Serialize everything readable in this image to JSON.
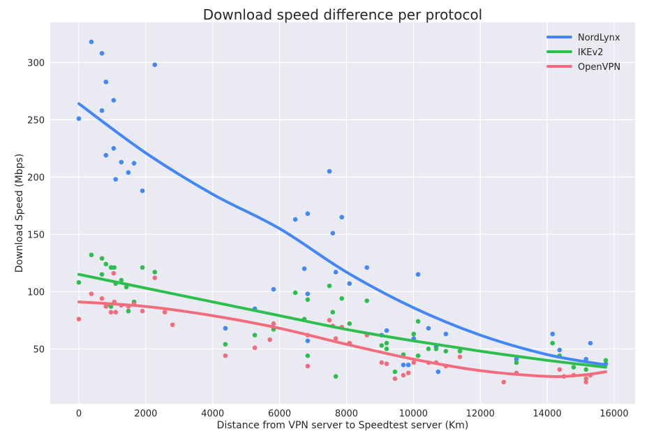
{
  "chart_data": {
    "type": "scatter",
    "title": "Download speed difference per protocol",
    "xlabel": "Distance from VPN server to Speedtest server (Km)",
    "ylabel": "Download Speed (Mbps)",
    "xlim": [
      -855,
      16625
    ],
    "ylim": [
      2,
      335
    ],
    "xticks": [
      0,
      2000,
      4000,
      6000,
      8000,
      10000,
      12000,
      14000,
      16000
    ],
    "yticks": [
      50,
      100,
      150,
      200,
      250,
      300
    ],
    "grid": true,
    "background": "#eaeaf2",
    "legend_position": "top-right",
    "series": [
      {
        "name": "NordLynx",
        "color": "#4287f5",
        "points": [
          [
            0,
            251
          ],
          [
            375,
            318
          ],
          [
            690,
            308
          ],
          [
            810,
            283
          ],
          [
            690,
            258
          ],
          [
            1040,
            267
          ],
          [
            810,
            219
          ],
          [
            1040,
            225
          ],
          [
            1270,
            213
          ],
          [
            1480,
            204
          ],
          [
            1650,
            212
          ],
          [
            1100,
            198
          ],
          [
            1900,
            188
          ],
          [
            2270,
            298
          ],
          [
            980,
            121
          ],
          [
            4380,
            68
          ],
          [
            5260,
            85
          ],
          [
            5820,
            102
          ],
          [
            6470,
            163
          ],
          [
            6740,
            120
          ],
          [
            6840,
            168
          ],
          [
            6840,
            98
          ],
          [
            6840,
            57
          ],
          [
            7490,
            205
          ],
          [
            7590,
            151
          ],
          [
            7680,
            117
          ],
          [
            7860,
            165
          ],
          [
            8090,
            107
          ],
          [
            8610,
            121
          ],
          [
            9050,
            62
          ],
          [
            9200,
            66
          ],
          [
            9700,
            36
          ],
          [
            9850,
            36
          ],
          [
            10010,
            59
          ],
          [
            10140,
            115
          ],
          [
            10450,
            68
          ],
          [
            10680,
            52
          ],
          [
            10740,
            30
          ],
          [
            10970,
            63
          ],
          [
            13080,
            41
          ],
          [
            14160,
            63
          ],
          [
            14370,
            49
          ],
          [
            15160,
            41
          ],
          [
            15290,
            55
          ],
          [
            15750,
            37
          ]
        ],
        "trend": [
          [
            0,
            264
          ],
          [
            2000,
            221
          ],
          [
            4000,
            185
          ],
          [
            6000,
            155
          ],
          [
            8000,
            117
          ],
          [
            10000,
            86
          ],
          [
            12000,
            62
          ],
          [
            14000,
            45
          ],
          [
            15750,
            36
          ]
        ]
      },
      {
        "name": "IKEv2",
        "color": "#2dbe4e",
        "points": [
          [
            0,
            108
          ],
          [
            375,
            132
          ],
          [
            690,
            129
          ],
          [
            810,
            124
          ],
          [
            960,
            121
          ],
          [
            1060,
            121
          ],
          [
            690,
            115
          ],
          [
            1270,
            110
          ],
          [
            1100,
            107
          ],
          [
            1420,
            104
          ],
          [
            1650,
            91
          ],
          [
            1900,
            121
          ],
          [
            2270,
            117
          ],
          [
            830,
            88
          ],
          [
            960,
            87
          ],
          [
            1480,
            83
          ],
          [
            4380,
            54
          ],
          [
            5260,
            62
          ],
          [
            5820,
            67
          ],
          [
            6470,
            99
          ],
          [
            6740,
            76
          ],
          [
            6840,
            93
          ],
          [
            6840,
            44
          ],
          [
            7490,
            105
          ],
          [
            7590,
            82
          ],
          [
            7680,
            26
          ],
          [
            7860,
            94
          ],
          [
            8090,
            72
          ],
          [
            8610,
            92
          ],
          [
            9050,
            53
          ],
          [
            9200,
            55
          ],
          [
            9200,
            50
          ],
          [
            9450,
            30
          ],
          [
            9700,
            45
          ],
          [
            10010,
            63
          ],
          [
            10140,
            74
          ],
          [
            10140,
            44
          ],
          [
            10450,
            50
          ],
          [
            10680,
            50
          ],
          [
            10970,
            48
          ],
          [
            11390,
            48
          ],
          [
            13080,
            38
          ],
          [
            14160,
            55
          ],
          [
            14370,
            44
          ],
          [
            14790,
            34
          ],
          [
            15160,
            32
          ],
          [
            15750,
            40
          ]
        ],
        "trend": [
          [
            0,
            115
          ],
          [
            2000,
            103
          ],
          [
            4000,
            91
          ],
          [
            6000,
            79
          ],
          [
            8000,
            67
          ],
          [
            10000,
            57
          ],
          [
            12000,
            48
          ],
          [
            14000,
            40
          ],
          [
            15750,
            34
          ]
        ]
      },
      {
        "name": "OpenVPN",
        "color": "#f16d7e",
        "points": [
          [
            0,
            76
          ],
          [
            375,
            98
          ],
          [
            690,
            94
          ],
          [
            810,
            87
          ],
          [
            960,
            82
          ],
          [
            1100,
            82
          ],
          [
            1060,
            91
          ],
          [
            1040,
            116
          ],
          [
            1270,
            88
          ],
          [
            1480,
            87
          ],
          [
            1650,
            89
          ],
          [
            1900,
            83
          ],
          [
            2270,
            112
          ],
          [
            2570,
            82
          ],
          [
            2800,
            71
          ],
          [
            4380,
            44
          ],
          [
            5260,
            51
          ],
          [
            5710,
            58
          ],
          [
            5820,
            72
          ],
          [
            6840,
            62
          ],
          [
            6840,
            35
          ],
          [
            7490,
            75
          ],
          [
            7590,
            70
          ],
          [
            7680,
            59
          ],
          [
            7860,
            69
          ],
          [
            8090,
            55
          ],
          [
            8610,
            62
          ],
          [
            9050,
            38
          ],
          [
            9200,
            37
          ],
          [
            9450,
            24
          ],
          [
            9700,
            27
          ],
          [
            9850,
            29
          ],
          [
            10010,
            38
          ],
          [
            10450,
            38
          ],
          [
            10680,
            38
          ],
          [
            10970,
            35
          ],
          [
            11390,
            43
          ],
          [
            12700,
            21
          ],
          [
            13080,
            29
          ],
          [
            14370,
            32
          ],
          [
            14500,
            26
          ],
          [
            14790,
            27
          ],
          [
            15160,
            21
          ],
          [
            15160,
            24
          ],
          [
            15290,
            27
          ]
        ],
        "trend": [
          [
            0,
            91
          ],
          [
            2000,
            87
          ],
          [
            4000,
            79
          ],
          [
            6000,
            68
          ],
          [
            8000,
            54
          ],
          [
            10000,
            41
          ],
          [
            12000,
            31
          ],
          [
            14000,
            26
          ],
          [
            15000,
            27
          ],
          [
            15750,
            30
          ]
        ]
      }
    ]
  }
}
